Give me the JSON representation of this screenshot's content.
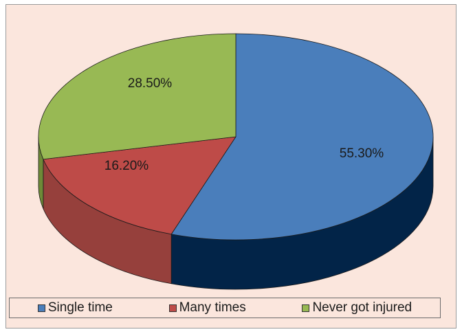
{
  "chart_data": {
    "type": "pie",
    "categories": [
      "Single time",
      "Many times",
      "Never got injured"
    ],
    "values": [
      55.3,
      16.2,
      28.5
    ],
    "labels": [
      "55.30%",
      "16.20%",
      "28.50%"
    ],
    "colors": [
      "#4a7ebb",
      "#be4b48",
      "#98b954"
    ],
    "side_colors": [
      "#022448",
      "#96403c",
      "#6e8a38"
    ],
    "legend_placement": "bottom",
    "style": "3d"
  }
}
